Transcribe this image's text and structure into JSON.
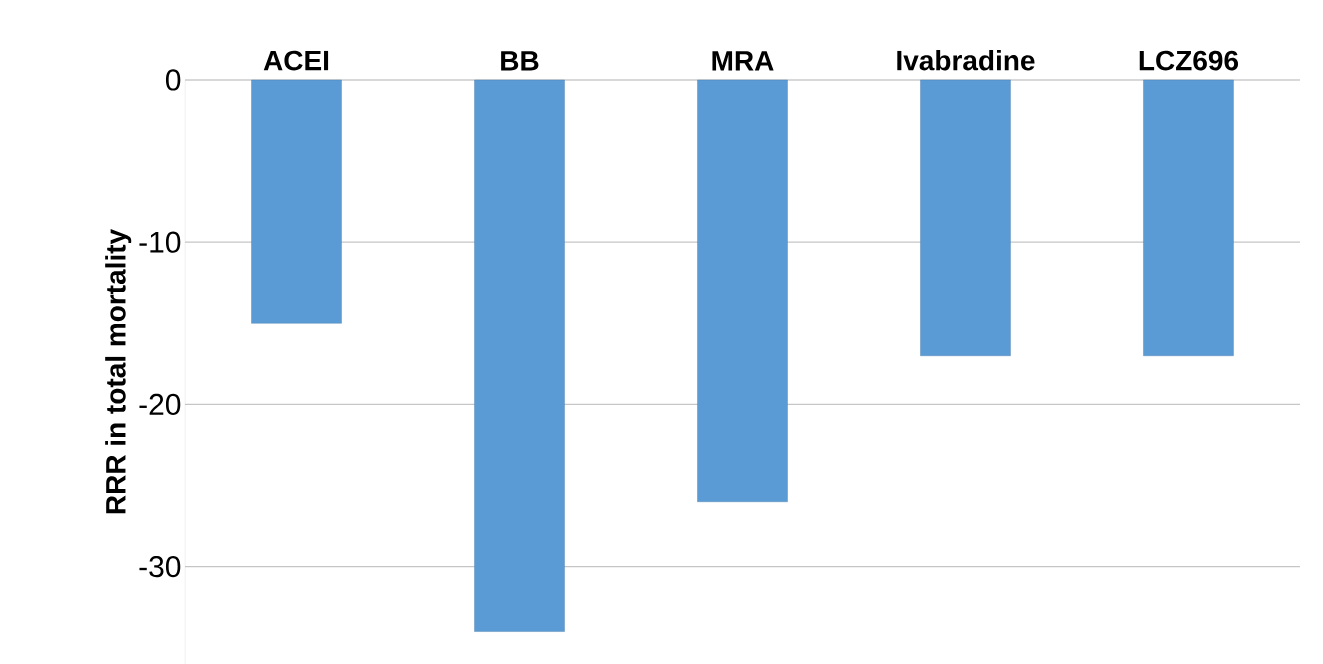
{
  "chart_data": {
    "type": "bar",
    "ylabel": "RRR in total mortality",
    "categories": [
      "ACEI",
      "BB",
      "MRA",
      "Ivabradine",
      "LCZ696"
    ],
    "values": [
      -15,
      -34,
      -26,
      -17,
      -17
    ],
    "color": "#5b9bd5",
    "ylim": [
      -36,
      0
    ],
    "yticks": [
      0,
      -10,
      -20,
      -30
    ],
    "grid": "y"
  }
}
